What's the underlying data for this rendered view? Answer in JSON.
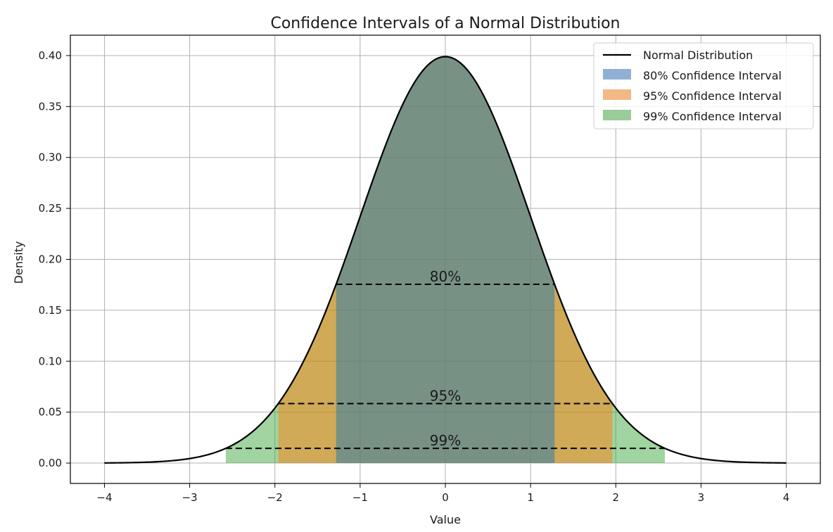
{
  "chart_data": {
    "type": "area",
    "title": "Confidence Intervals of a Normal Distribution",
    "xlabel": "Value",
    "ylabel": "Density",
    "xlim": [
      -4.4,
      4.4
    ],
    "ylim": [
      -0.02,
      0.42
    ],
    "grid": true,
    "legend_position": "top-right",
    "xticks": [
      -4,
      -3,
      -2,
      -1,
      0,
      1,
      2,
      3,
      4
    ],
    "xtick_labels": [
      "−4",
      "−3",
      "−2",
      "−1",
      "0",
      "1",
      "2",
      "3",
      "4"
    ],
    "yticks": [
      0.0,
      0.05,
      0.1,
      0.15,
      0.2,
      0.25,
      0.3,
      0.35,
      0.4
    ],
    "ytick_labels": [
      "0.00",
      "0.05",
      "0.10",
      "0.15",
      "0.20",
      "0.25",
      "0.30",
      "0.35",
      "0.40"
    ],
    "curve": {
      "name": "Normal Distribution",
      "mean": 0,
      "sd": 1,
      "x_range": [
        -4,
        4
      ],
      "color": "#000000"
    },
    "intervals": [
      {
        "name": "99% Confidence Interval",
        "label": "99%",
        "level": 0.99,
        "z": 2.576,
        "color": "#2ca02c",
        "opacity": 0.45
      },
      {
        "name": "95% Confidence Interval",
        "label": "95%",
        "level": 0.95,
        "z": 1.96,
        "color": "#ff7f0e",
        "opacity": 0.5
      },
      {
        "name": "80% Confidence Interval",
        "label": "80%",
        "level": 0.8,
        "z": 1.2816,
        "color": "#1f77b4",
        "opacity": 0.5
      }
    ],
    "legend": [
      {
        "label": "Normal Distribution",
        "kind": "line",
        "color": "#000000"
      },
      {
        "label": "80% Confidence Interval",
        "kind": "patch",
        "color": "#8fb0d3"
      },
      {
        "label": "95% Confidence Interval",
        "kind": "patch",
        "color": "#f2b985"
      },
      {
        "label": "99% Confidence Interval",
        "kind": "patch",
        "color": "#99cc99"
      }
    ]
  }
}
